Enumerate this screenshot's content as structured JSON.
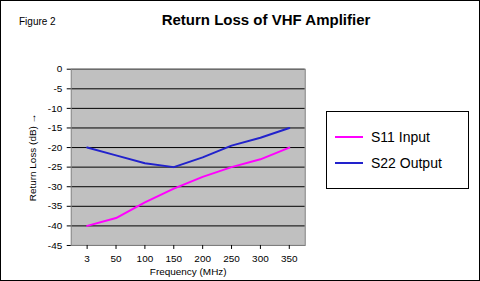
{
  "chart_data": {
    "type": "line",
    "title": "Return Loss of VHF Amplifier",
    "annotation": "Figure 2",
    "x_label": "Frequency (MHz)",
    "y_label": "Return Loss (dB)",
    "categories": [
      "3",
      "50",
      "100",
      "150",
      "200",
      "250",
      "300",
      "350"
    ],
    "series": [
      {
        "name": "S11 Input",
        "color": "#ff00ff",
        "values": [
          -40,
          -38,
          -34,
          -30.5,
          -27.5,
          -25,
          -23,
          -20
        ]
      },
      {
        "name": "S22 Output",
        "color": "#2222cc",
        "values": [
          -20,
          -22,
          -24,
          -25,
          -22.5,
          -19.5,
          -17.5,
          -15
        ]
      }
    ],
    "ylim": [
      -45,
      0
    ],
    "yticks": [
      -45,
      -40,
      -35,
      -30,
      -25,
      -20,
      -15,
      -10,
      -5,
      0
    ],
    "grid": true,
    "legend": "right"
  }
}
